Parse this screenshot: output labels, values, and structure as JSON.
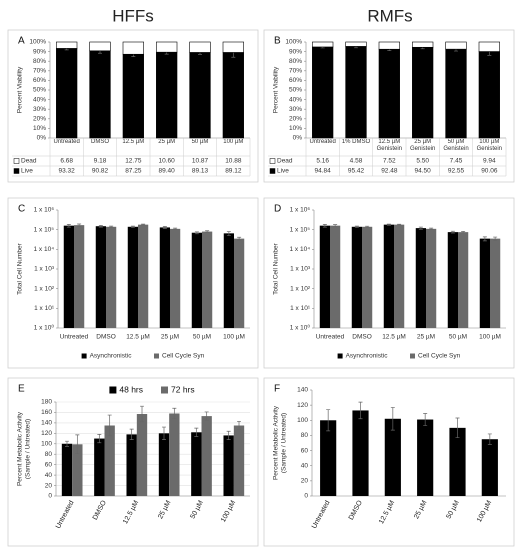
{
  "headers": {
    "left": "HFFs",
    "right": "RMFs"
  },
  "chart_data": [
    {
      "type": "bar",
      "panel": "A",
      "stacked": true,
      "legend": "table",
      "categories": [
        "Untreated",
        "DMSO",
        "12.5 µM",
        "25 µM",
        "50 µM",
        "100 µM"
      ],
      "ylabel": "Percent Viability",
      "ylim": [
        0,
        100
      ],
      "yticks": [
        {
          "value": 0,
          "label": "0%"
        },
        {
          "value": 10,
          "label": "10%"
        },
        {
          "value": 20,
          "label": "20%"
        },
        {
          "value": 30,
          "label": "30%"
        },
        {
          "value": 40,
          "label": "40%"
        },
        {
          "value": 50,
          "label": "50%"
        },
        {
          "value": 60,
          "label": "60%"
        },
        {
          "value": 70,
          "label": "70%"
        },
        {
          "value": 80,
          "label": "80%"
        },
        {
          "value": 90,
          "label": "90%"
        },
        {
          "value": 100,
          "label": "100%"
        }
      ],
      "series": [
        {
          "name": "Dead",
          "color": "#ffffff",
          "values": [
            6.68,
            9.18,
            12.75,
            10.6,
            10.87,
            10.88
          ],
          "value_labels": [
            "6.68",
            "9.18",
            "12.75",
            "10.60",
            "10.87",
            "10.88"
          ]
        },
        {
          "name": "Live",
          "color": "#000000",
          "values": [
            93.32,
            90.82,
            87.25,
            89.4,
            89.13,
            89.12
          ],
          "value_labels": [
            "93.32",
            "90.82",
            "87.25",
            "89.40",
            "89.13",
            "89.12"
          ],
          "errors": [
            1.5,
            2.5,
            2.5,
            2,
            2,
            5
          ]
        }
      ]
    },
    {
      "type": "bar",
      "panel": "B",
      "stacked": true,
      "legend": "table",
      "categories": [
        "Untreated",
        "1% DMSO",
        "12.5 µM Genistein",
        "25 µM Genistein",
        "50 µM Genistein",
        "100 µM Genistein"
      ],
      "ylabel": "Percent Viability",
      "ylim": [
        0,
        100
      ],
      "yticks": [
        {
          "value": 0,
          "label": "0%"
        },
        {
          "value": 10,
          "label": "10%"
        },
        {
          "value": 20,
          "label": "20%"
        },
        {
          "value": 30,
          "label": "30%"
        },
        {
          "value": 40,
          "label": "40%"
        },
        {
          "value": 50,
          "label": "50%"
        },
        {
          "value": 60,
          "label": "60%"
        },
        {
          "value": 70,
          "label": "70%"
        },
        {
          "value": 80,
          "label": "80%"
        },
        {
          "value": 90,
          "label": "90%"
        },
        {
          "value": 100,
          "label": "100%"
        }
      ],
      "series": [
        {
          "name": "Dead",
          "color": "#ffffff",
          "values": [
            5.16,
            4.58,
            7.52,
            5.5,
            7.45,
            9.94
          ],
          "value_labels": [
            "5.16",
            "4.58",
            "7.52",
            "5.50",
            "7.45",
            "9.94"
          ]
        },
        {
          "name": "Live",
          "color": "#000000",
          "values": [
            94.84,
            95.42,
            92.48,
            94.5,
            92.55,
            90.06
          ],
          "value_labels": [
            "94.84",
            "95.42",
            "92.48",
            "94.50",
            "92.55",
            "90.06"
          ],
          "errors": [
            1,
            1.5,
            1.5,
            1.5,
            2,
            4
          ]
        }
      ]
    },
    {
      "type": "bar",
      "panel": "C",
      "log_scale": true,
      "legend": "bottom",
      "categories": [
        "Untreated",
        "DMSO",
        "12.5 µM",
        "25 µM",
        "50 µM",
        "100 µM"
      ],
      "ylabel": "Total Cell Number",
      "ylim": [
        1,
        1000000
      ],
      "yticks": [
        {
          "value": 1,
          "label": "1 x 10⁰"
        },
        {
          "value": 10,
          "label": "1 x 10¹"
        },
        {
          "value": 100,
          "label": "1 x 10²"
        },
        {
          "value": 1000,
          "label": "1 x 10³"
        },
        {
          "value": 10000,
          "label": "1 x 10⁴"
        },
        {
          "value": 100000,
          "label": "1 x 10⁵"
        },
        {
          "value": 1000000,
          "label": "1 x 10⁶"
        }
      ],
      "series": [
        {
          "name": "Asynchronistic",
          "color": "#000000",
          "values": [
            160000,
            150000,
            140000,
            130000,
            70000,
            65000
          ],
          "errors": [
            25000,
            15000,
            12000,
            15000,
            8000,
            15000
          ]
        },
        {
          "name": "Cell Cycle Syn",
          "color": "#6b6b6b",
          "values": [
            170000,
            140000,
            180000,
            110000,
            80000,
            35000
          ],
          "errors": [
            25000,
            12000,
            12000,
            10000,
            8000,
            6000
          ]
        }
      ]
    },
    {
      "type": "bar",
      "panel": "D",
      "log_scale": true,
      "legend": "bottom",
      "categories": [
        "Untreated",
        "DMSO",
        "12.5 µM",
        "25 µM",
        "50 µM",
        "100 µM"
      ],
      "ylabel": "Total Cell Number",
      "ylim": [
        1,
        1000000
      ],
      "yticks": [
        {
          "value": 1,
          "label": "1 x 10⁰"
        },
        {
          "value": 10,
          "label": "1 x 10¹"
        },
        {
          "value": 100,
          "label": "1 x 10²"
        },
        {
          "value": 1000,
          "label": "1 x 10³"
        },
        {
          "value": 10000,
          "label": "1 x 10⁴"
        },
        {
          "value": 100000,
          "label": "1 x 10⁵"
        },
        {
          "value": 1000000,
          "label": "1 x 10⁶"
        }
      ],
      "series": [
        {
          "name": "Asynchronistic",
          "color": "#000000",
          "values": [
            160000,
            140000,
            180000,
            120000,
            75000,
            35000
          ],
          "errors": [
            25000,
            12000,
            12000,
            15000,
            8000,
            8000
          ]
        },
        {
          "name": "Cell Cycle Syn",
          "color": "#6b6b6b",
          "values": [
            160000,
            140000,
            180000,
            110000,
            75000,
            35000
          ],
          "errors": [
            20000,
            10000,
            10000,
            10000,
            7000,
            7000
          ]
        }
      ]
    },
    {
      "type": "bar",
      "panel": "E",
      "legend": "top",
      "grid": true,
      "categories": [
        "Untreated",
        "DMSO",
        "12.5 µM",
        "25 µM",
        "50 µM",
        "100 µM"
      ],
      "ylabel": [
        "Percent Metabolic Activity",
        "(Sample / Untreated)"
      ],
      "ylim": [
        0,
        180
      ],
      "yticks": [
        0,
        20,
        40,
        60,
        80,
        100,
        120,
        140,
        160,
        180
      ],
      "series": [
        {
          "name": "48 hrs",
          "color": "#000000",
          "values": [
            100,
            110,
            118,
            120,
            122,
            116
          ],
          "errors": [
            5,
            8,
            10,
            12,
            8,
            8
          ]
        },
        {
          "name": "72 hrs",
          "color": "#6b6b6b",
          "values": [
            99,
            135,
            157,
            158,
            153,
            135
          ],
          "errors": [
            18,
            20,
            15,
            10,
            8,
            8
          ]
        }
      ]
    },
    {
      "type": "bar",
      "panel": "F",
      "categories": [
        "Untreated",
        "DMSO",
        "12.5 µM",
        "25 µM",
        "50 µM",
        "100 µM"
      ],
      "ylabel": [
        "Percent Metabolic Activity",
        "(Sample / Untreated)"
      ],
      "ylim": [
        0,
        140
      ],
      "yticks": [
        0,
        20,
        40,
        60,
        80,
        100,
        120,
        140
      ],
      "series": [
        {
          "color": "#000000",
          "values": [
            100,
            113,
            102,
            101,
            90,
            75
          ],
          "errors": [
            14,
            11,
            15,
            8,
            13,
            7
          ]
        }
      ]
    }
  ]
}
